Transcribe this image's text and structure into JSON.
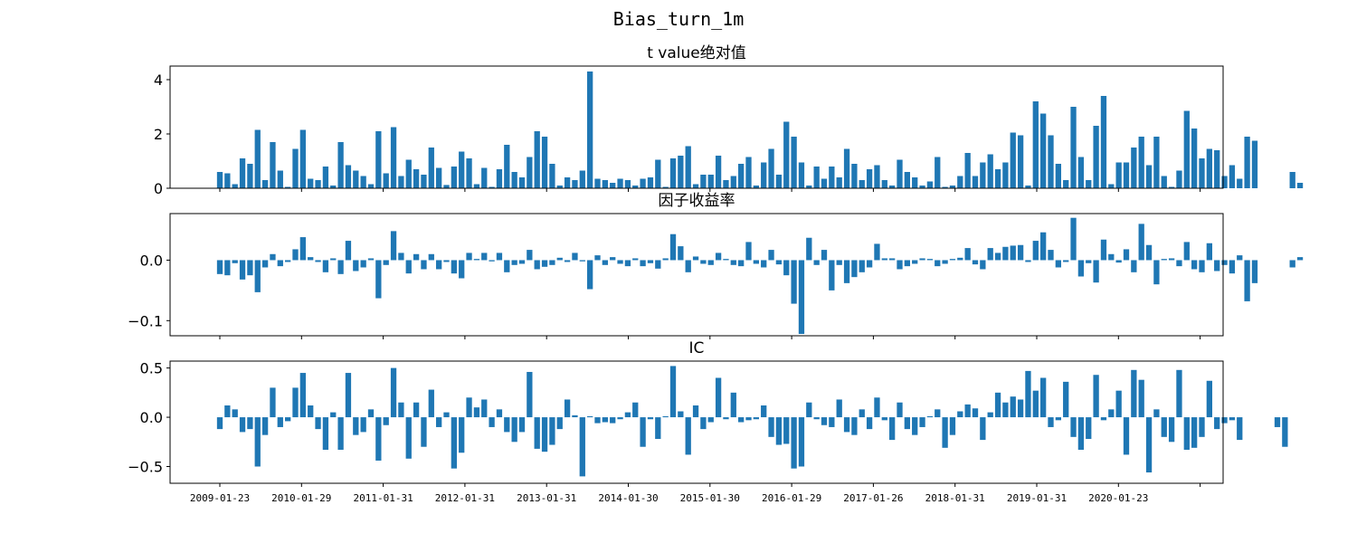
{
  "chart_data": {
    "title": "Bias_turn_1m",
    "type": "bar",
    "bar_color": "#1f77b4",
    "x_tick_labels": [
      "2009-01-23",
      "2010-01-29",
      "2011-01-31",
      "2012-01-31",
      "2013-01-31",
      "2014-01-30",
      "2015-01-30",
      "2016-01-29",
      "2017-01-26",
      "2018-01-31",
      "2019-01-31",
      "2020-01-23",
      ""
    ],
    "panels": [
      {
        "title": "t value绝对值",
        "yticks": [
          0,
          2,
          4
        ],
        "ytick_labels": [
          "0",
          "2",
          "4"
        ],
        "ylim": [
          0,
          4.5
        ],
        "values": [
          0.6,
          0.55,
          0.15,
          1.1,
          0.9,
          2.15,
          0.3,
          1.7,
          0.65,
          0.05,
          1.45,
          2.15,
          0.35,
          0.3,
          0.8,
          0.1,
          1.7,
          0.85,
          0.65,
          0.45,
          0.15,
          2.1,
          0.55,
          2.25,
          0.45,
          1.05,
          0.7,
          0.5,
          1.5,
          0.75,
          0.12,
          0.8,
          1.35,
          1.1,
          0.15,
          0.75,
          0.05,
          0.7,
          1.6,
          0.6,
          0.4,
          1.15,
          2.1,
          1.9,
          0.9,
          0.1,
          0.4,
          0.3,
          0.65,
          4.3,
          0.35,
          0.3,
          0.2,
          0.35,
          0.3,
          0.1,
          0.35,
          0.4,
          1.05,
          0.05,
          1.1,
          1.2,
          1.55,
          0.15,
          0.5,
          0.5,
          1.2,
          0.3,
          0.45,
          0.9,
          1.15,
          0.1,
          0.95,
          1.45,
          0.5,
          2.45,
          1.9,
          0.95,
          0.1,
          0.8,
          0.35,
          0.8,
          0.4,
          1.45,
          0.9,
          0.3,
          0.7,
          0.85,
          0.3,
          0.1,
          1.05,
          0.6,
          0.4,
          0.1,
          0.25,
          1.15,
          0.05,
          0.1,
          0.45,
          1.3,
          0.45,
          0.95,
          1.25,
          0.7,
          0.95,
          2.05,
          1.95,
          0.1,
          3.2,
          2.75,
          1.95,
          0.9,
          0.3,
          3.0,
          1.15,
          0.3,
          2.3,
          3.4,
          0.15,
          0.95,
          0.95,
          1.5,
          1.9,
          0.85,
          1.9,
          0.45,
          0.05,
          0.65,
          2.85,
          2.2,
          1.1,
          1.45,
          1.4,
          0.45,
          0.85,
          0.35,
          1.9,
          1.75,
          null,
          null,
          null,
          null,
          0.6,
          0.2,
          null
        ]
      },
      {
        "title": "因子收益率",
        "yticks": [
          0.0,
          -0.1
        ],
        "ytick_labels": [
          "0.0",
          "−0.1"
        ],
        "ylim": [
          -0.125,
          0.077
        ],
        "values": [
          -0.023,
          -0.025,
          -0.005,
          -0.032,
          -0.025,
          -0.053,
          -0.012,
          0.01,
          -0.01,
          -0.003,
          0.018,
          0.038,
          0.005,
          -0.003,
          -0.02,
          0.003,
          -0.023,
          0.032,
          -0.018,
          -0.012,
          0.003,
          -0.063,
          -0.008,
          0.048,
          0.012,
          -0.022,
          0.01,
          -0.015,
          0.01,
          -0.015,
          -0.003,
          -0.022,
          -0.03,
          0.012,
          0.002,
          0.012,
          -0.002,
          0.012,
          -0.02,
          -0.008,
          -0.006,
          0.017,
          -0.015,
          -0.011,
          -0.008,
          0.004,
          -0.003,
          0.012,
          -0.002,
          -0.048,
          0.008,
          -0.008,
          0.005,
          -0.006,
          -0.01,
          0.003,
          -0.01,
          -0.005,
          -0.014,
          0.003,
          0.043,
          0.023,
          -0.02,
          0.006,
          -0.006,
          -0.008,
          0.012,
          0.002,
          -0.008,
          -0.01,
          0.03,
          -0.006,
          -0.012,
          0.017,
          -0.007,
          -0.025,
          -0.072,
          -0.122,
          0.037,
          -0.008,
          0.017,
          -0.05,
          -0.008,
          -0.038,
          -0.028,
          -0.02,
          -0.012,
          0.027,
          0.003,
          0.003,
          -0.015,
          -0.01,
          -0.006,
          0.003,
          0.002,
          -0.01,
          -0.006,
          0.002,
          0.004,
          0.02,
          -0.007,
          -0.015,
          0.02,
          0.012,
          0.022,
          0.024,
          0.025,
          -0.003,
          0.032,
          0.046,
          0.017,
          -0.012,
          -0.003,
          0.07,
          -0.027,
          -0.005,
          -0.037,
          0.034,
          0.01,
          -0.004,
          0.018,
          -0.02,
          0.06,
          0.025,
          -0.04,
          0.002,
          0.003,
          -0.01,
          0.03,
          -0.015,
          -0.02,
          0.028,
          -0.018,
          -0.008,
          -0.022,
          0.008,
          -0.068,
          -0.038,
          null,
          null,
          null,
          null,
          -0.012,
          0.005,
          null
        ]
      },
      {
        "title": "IC",
        "yticks": [
          0.5,
          0.0,
          -0.5
        ],
        "ytick_labels": [
          "0.5",
          "0.0",
          "−0.5"
        ],
        "ylim": [
          -0.67,
          0.57
        ],
        "values": [
          -0.12,
          0.12,
          0.08,
          -0.15,
          -0.12,
          -0.5,
          -0.18,
          0.3,
          -0.1,
          -0.04,
          0.3,
          0.45,
          0.12,
          -0.12,
          -0.33,
          0.05,
          -0.33,
          0.45,
          -0.18,
          -0.15,
          0.08,
          -0.44,
          -0.08,
          0.5,
          0.15,
          -0.42,
          0.15,
          -0.3,
          0.28,
          -0.1,
          0.05,
          -0.52,
          -0.36,
          0.2,
          0.1,
          0.18,
          -0.1,
          0.08,
          -0.15,
          -0.25,
          -0.15,
          0.46,
          -0.32,
          -0.35,
          -0.28,
          -0.12,
          0.18,
          0.02,
          -0.6,
          0.01,
          -0.06,
          -0.05,
          -0.06,
          -0.02,
          0.05,
          0.15,
          -0.3,
          -0.02,
          -0.22,
          0.01,
          0.52,
          0.06,
          -0.38,
          0.12,
          -0.12,
          -0.05,
          0.4,
          -0.02,
          0.25,
          -0.05,
          -0.03,
          -0.02,
          0.12,
          -0.2,
          -0.28,
          -0.27,
          -0.52,
          -0.5,
          0.15,
          -0.02,
          -0.08,
          -0.1,
          0.18,
          -0.15,
          -0.18,
          0.08,
          -0.12,
          0.2,
          -0.03,
          -0.23,
          0.15,
          -0.12,
          -0.18,
          -0.1,
          0.01,
          0.08,
          -0.31,
          -0.18,
          0.06,
          0.13,
          0.09,
          -0.23,
          0.05,
          0.25,
          0.15,
          0.21,
          0.18,
          0.47,
          0.27,
          0.4,
          -0.1,
          -0.03,
          0.36,
          -0.2,
          -0.33,
          -0.22,
          0.43,
          -0.03,
          0.08,
          0.27,
          -0.38,
          0.48,
          0.38,
          -0.56,
          0.08,
          -0.2,
          -0.25,
          0.48,
          -0.33,
          -0.31,
          -0.2,
          0.37,
          -0.12,
          -0.06,
          -0.03,
          -0.23,
          null,
          null,
          null,
          null,
          -0.1,
          -0.3,
          null
        ]
      }
    ]
  }
}
